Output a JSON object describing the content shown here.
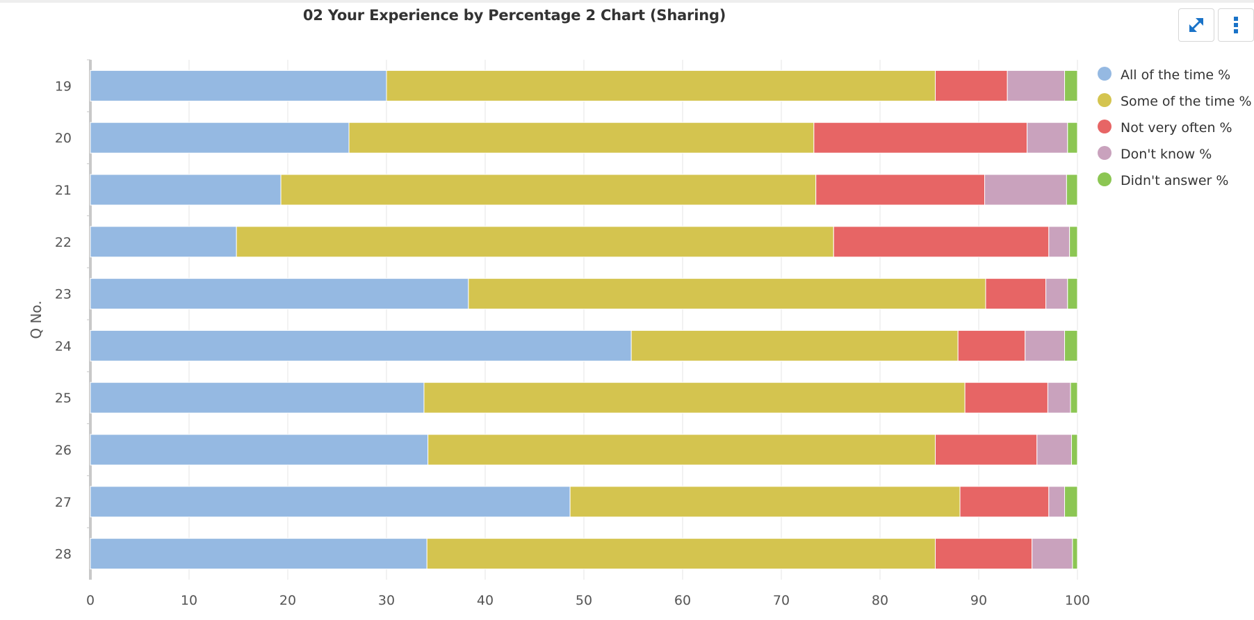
{
  "chart_data": {
    "type": "bar",
    "orientation": "horizontal",
    "stacked": true,
    "title": "02 Your Experience by Percentage 2 Chart (Sharing)",
    "ylabel": "Q No.",
    "xlabel": "",
    "xlim": [
      0,
      100
    ],
    "xticks": [
      "0",
      "10",
      "20",
      "30",
      "40",
      "50",
      "60",
      "70",
      "80",
      "90",
      "100"
    ],
    "categories": [
      "19",
      "20",
      "21",
      "22",
      "23",
      "24",
      "25",
      "26",
      "27",
      "28"
    ],
    "grid": true,
    "legend_position": "right",
    "series": [
      {
        "name": "All of the time %",
        "color": "#95b9e2",
        "values": [
          30.0,
          26.2,
          19.3,
          14.8,
          38.3,
          54.8,
          33.8,
          34.2,
          48.6,
          34.1
        ]
      },
      {
        "name": "Some of the time %",
        "color": "#d4c44f",
        "values": [
          55.6,
          47.1,
          54.2,
          60.5,
          52.4,
          33.1,
          54.8,
          51.4,
          39.5,
          51.5
        ]
      },
      {
        "name": "Not very often %",
        "color": "#e76565",
        "values": [
          7.3,
          21.6,
          17.1,
          21.8,
          6.1,
          6.8,
          8.4,
          10.3,
          9.0,
          9.8
        ]
      },
      {
        "name": "Don't know %",
        "color": "#c9a2bd",
        "values": [
          5.8,
          4.1,
          8.3,
          2.1,
          2.2,
          4.0,
          2.3,
          3.5,
          1.6,
          4.1
        ]
      },
      {
        "name": "Didn't answer %",
        "color": "#8cc653",
        "values": [
          1.3,
          1.0,
          1.1,
          0.8,
          1.0,
          1.3,
          0.7,
          0.6,
          1.3,
          0.5
        ]
      }
    ]
  },
  "toolbar": {
    "expand_icon": "expand-arrows-icon",
    "menu_icon": "vertical-ellipsis-icon",
    "accent_color": "#1a73c8"
  }
}
